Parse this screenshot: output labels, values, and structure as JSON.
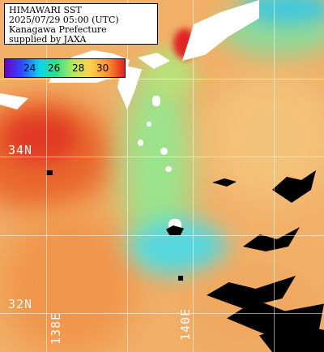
{
  "header": {
    "line1": "HIMAWARI SST",
    "line2": "2025/07/29 05:00 (UTC)",
    "line3": "Kanagawa Prefecture",
    "line4": "supplied by JAXA"
  },
  "legend": {
    "ticks": [
      "24",
      "26",
      "28",
      "30"
    ],
    "colors": [
      "#6a00c8",
      "#2b4bff",
      "#10d0f0",
      "#30e088",
      "#b8e860",
      "#ffd050",
      "#ff9030",
      "#e02020"
    ]
  },
  "grid": {
    "lat_labels": [
      "34N",
      "32N"
    ],
    "lon_labels": [
      "138E",
      "140E"
    ]
  },
  "colors": {
    "warm_sea": "#f2b068",
    "hot_sea": "#e8502a",
    "cool_sea": "#8ee08a",
    "cold_sea": "#5cd0e8",
    "land": "#ffffff",
    "cloud": "#000000"
  }
}
